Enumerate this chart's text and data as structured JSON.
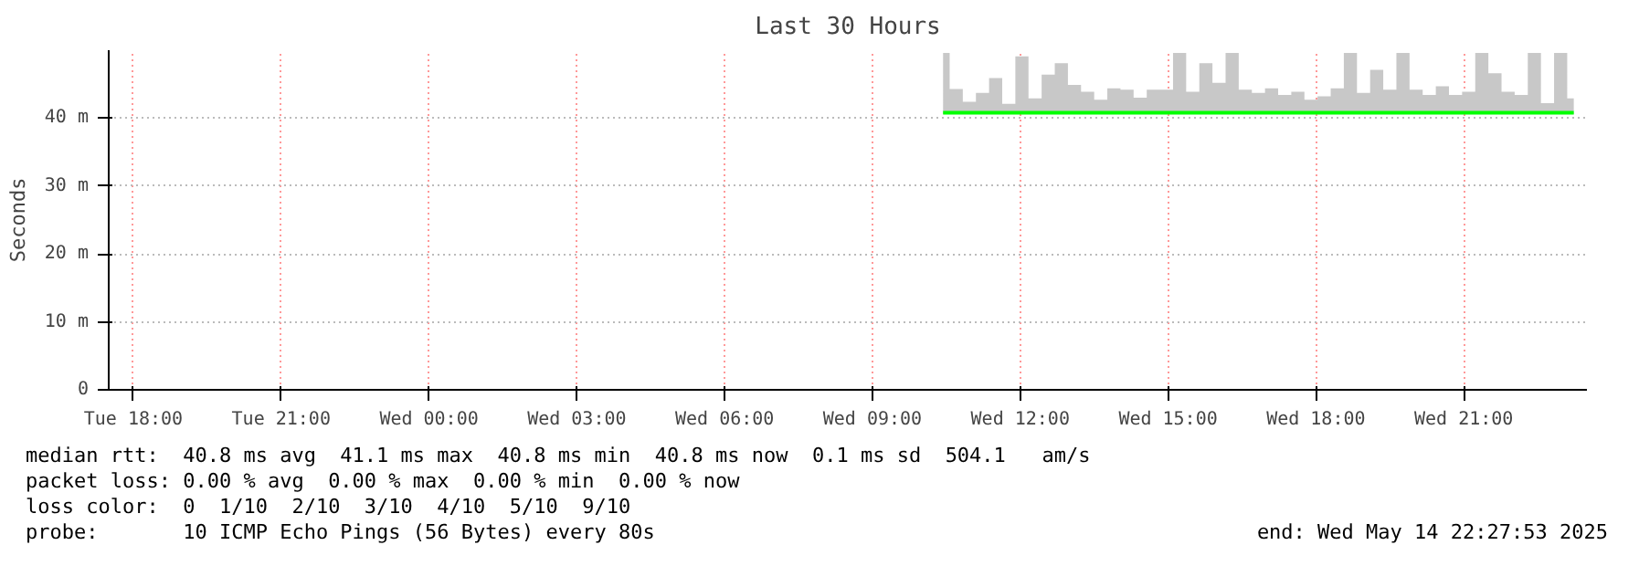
{
  "chart_data": {
    "type": "line",
    "title": "Last 30 Hours",
    "ylabel": "Seconds",
    "x": [
      "2025-05-14T10:26",
      "2025-05-14T10:42",
      "2025-05-14T10:58",
      "2025-05-14T11:14",
      "2025-05-14T11:30",
      "2025-05-14T11:46",
      "2025-05-14T12:02",
      "2025-05-14T12:18",
      "2025-05-14T12:34",
      "2025-05-14T12:50",
      "2025-05-14T13:06",
      "2025-05-14T13:22",
      "2025-05-14T13:38",
      "2025-05-14T13:54",
      "2025-05-14T14:10",
      "2025-05-14T14:26",
      "2025-05-14T14:42",
      "2025-05-14T14:58",
      "2025-05-14T15:14",
      "2025-05-14T15:30",
      "2025-05-14T15:46",
      "2025-05-14T16:02",
      "2025-05-14T16:18",
      "2025-05-14T16:34",
      "2025-05-14T16:50",
      "2025-05-14T17:06",
      "2025-05-14T17:22",
      "2025-05-14T17:38",
      "2025-05-14T17:54",
      "2025-05-14T18:10",
      "2025-05-14T18:26",
      "2025-05-14T18:42",
      "2025-05-14T18:58",
      "2025-05-14T19:14",
      "2025-05-14T19:30",
      "2025-05-14T19:46",
      "2025-05-14T20:02",
      "2025-05-14T20:18",
      "2025-05-14T20:34",
      "2025-05-14T20:50",
      "2025-05-14T21:06",
      "2025-05-14T21:22",
      "2025-05-14T21:38",
      "2025-05-14T21:54",
      "2025-05-14T22:10",
      "2025-05-14T22:26",
      "2025-05-14T22:42",
      "2025-05-14T22:58",
      "2025-05-14T23:14"
    ],
    "series": [
      {
        "color": "#00ff00",
        "lower": [
          40.6,
          40.6,
          40.6,
          40.6,
          40.6,
          40.6,
          40.6,
          40.6,
          40.6,
          40.6,
          40.6,
          40.6,
          40.6,
          40.6,
          40.6,
          40.6,
          40.6,
          40.6,
          40.6,
          40.6,
          40.6,
          40.6,
          40.6,
          40.6,
          40.6,
          40.6,
          40.6,
          40.6,
          40.6,
          40.6,
          40.6,
          40.6,
          40.6,
          40.6,
          40.6,
          40.6,
          40.6,
          40.6,
          40.6,
          40.6,
          40.6,
          40.6,
          40.6,
          40.6,
          40.6,
          40.6,
          40.6,
          40.6,
          40.6
        ],
        "upper": [
          49.6,
          44.3,
          42.4,
          43.7,
          45.9,
          42.1,
          49.1,
          42.9,
          46.4,
          48.1,
          44.9,
          43.9,
          42.7,
          44.4,
          44.2,
          43.0,
          44.2,
          44.2,
          49.6,
          43.9,
          48.1,
          45.2,
          49.6,
          44.2,
          43.7,
          44.4,
          43.4,
          43.9,
          42.7,
          43.2,
          44.4,
          49.6,
          43.7,
          47.1,
          44.2,
          49.6,
          44.2,
          43.4,
          44.7,
          43.4,
          43.9,
          49.6,
          46.6,
          43.9,
          43.4,
          49.6,
          42.2,
          49.6,
          42.9
        ],
        "values": [
          40.8,
          40.8,
          40.8,
          40.8,
          40.8,
          40.8,
          40.8,
          40.8,
          40.8,
          40.8,
          40.8,
          40.8,
          40.8,
          40.8,
          40.8,
          40.8,
          40.8,
          40.8,
          40.8,
          40.8,
          40.8,
          40.8,
          40.8,
          40.8,
          40.8,
          40.8,
          40.8,
          40.8,
          40.8,
          40.8,
          40.8,
          40.8,
          40.8,
          40.8,
          40.8,
          40.8,
          40.8,
          40.8,
          40.8,
          40.8,
          40.8,
          40.8,
          40.8,
          40.8,
          40.8,
          40.8,
          40.8,
          40.8,
          40.8
        ]
      }
    ],
    "xlim": [
      "2025-05-13T17:30",
      "2025-05-14T23:30"
    ],
    "xticks": [
      {
        "value": "2025-05-13T18:00",
        "label": "Tue 18:00"
      },
      {
        "value": "2025-05-13T21:00",
        "label": "Tue 21:00"
      },
      {
        "value": "2025-05-14T00:00",
        "label": "Wed 00:00"
      },
      {
        "value": "2025-05-14T03:00",
        "label": "Wed 03:00"
      },
      {
        "value": "2025-05-14T06:00",
        "label": "Wed 06:00"
      },
      {
        "value": "2025-05-14T09:00",
        "label": "Wed 09:00"
      },
      {
        "value": "2025-05-14T12:00",
        "label": "Wed 12:00"
      },
      {
        "value": "2025-05-14T15:00",
        "label": "Wed 15:00"
      },
      {
        "value": "2025-05-14T18:00",
        "label": "Wed 18:00"
      },
      {
        "value": "2025-05-14T21:00",
        "label": "Wed 21:00"
      }
    ],
    "ylim": [
      0,
      50
    ],
    "yticks": [
      0,
      {
        "value": 10,
        "label": "10 m"
      },
      {
        "value": 20,
        "label": "20 m"
      },
      {
        "value": 30,
        "label": "30 m"
      },
      {
        "value": 40,
        "label": "40 m"
      }
    ],
    "grid": true,
    "annotations": [
      "median rtt:  40.8 ms avg  41.1 ms max  40.8 ms min  40.8 ms now  0.1 ms sd  504.1   am/s",
      "packet loss: 0.00 % avg  0.00 % max  0.00 % min  0.00 % now",
      "loss color:  0  1/10  2/10  3/10  4/10  5/10  9/10",
      "probe:       10 ICMP Echo Pings (56 Bytes) every 80s",
      "end: Wed May 14 22:27:53 2025"
    ]
  }
}
